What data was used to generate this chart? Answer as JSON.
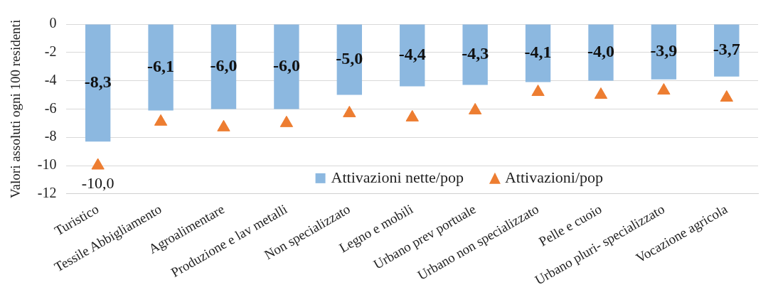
{
  "chart_data": {
    "type": "bar",
    "ylabel": "Valori assoluti ogni 100 residenti",
    "categories": [
      "Turistico",
      "Tessile Abbigliamento",
      "Agroalimentare",
      "Produzione e lav metalli",
      "Non specializzato",
      "Legno e mobili",
      "Urbano prev portuale",
      "Urbano non specializzato",
      "Pelle e cuoio",
      "Urbano pluri- specializzato",
      "Vocazione agricola"
    ],
    "series": [
      {
        "name": "Attivazioni nette/pop",
        "color": "#8cb8e0",
        "values": [
          -8.3,
          -6.1,
          -6.0,
          -6.0,
          -5.0,
          -4.4,
          -4.3,
          -4.1,
          -4.0,
          -3.9,
          -3.7
        ],
        "value_labels": [
          "-8,3",
          "-6,1",
          "-6,0",
          "-6,0",
          "-5,0",
          "-4,4",
          "-4,3",
          "-4,1",
          "-4,0",
          "-3,9",
          "-3,7"
        ]
      },
      {
        "name": "Attivazioni/pop",
        "type": "scatter",
        "marker": "triangle",
        "color": "#ed7d31",
        "values": [
          -10.0,
          -6.9,
          -7.3,
          -7.0,
          -6.3,
          -6.6,
          -6.1,
          -4.8,
          -5.0,
          -4.7,
          -5.2
        ],
        "value_labels": [
          "-10,0",
          null,
          null,
          null,
          null,
          null,
          null,
          null,
          null,
          null,
          null
        ]
      }
    ],
    "ylim": [
      -12,
      0
    ],
    "yticks": [
      0,
      -2,
      -4,
      -6,
      -8,
      -10,
      -12
    ],
    "grid": "y",
    "legend": "bottom"
  }
}
